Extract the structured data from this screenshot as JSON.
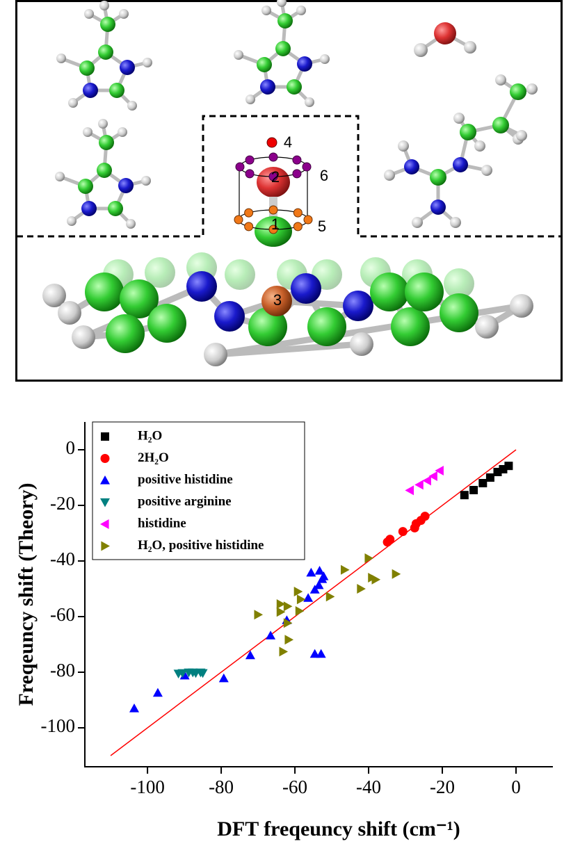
{
  "diagram": {
    "labels": [
      "1",
      "2",
      "3",
      "4",
      "5",
      "6"
    ]
  },
  "chart_data": {
    "type": "scatter",
    "x_label": "DFT freqeuncy shift (cm⁻¹)",
    "y_label": "Freqeuncy shift (Theory)",
    "xlim": [
      -117,
      10
    ],
    "ylim": [
      -114,
      10
    ],
    "xticks": [
      -100,
      -80,
      -60,
      -40,
      -20,
      0
    ],
    "yticks": [
      0,
      -20,
      -40,
      -60,
      -80,
      -100
    ],
    "legend": "upper left",
    "fit_line": {
      "x": [
        -110,
        0
      ],
      "y": [
        -110,
        0
      ],
      "color": "#ff0000"
    },
    "series": [
      {
        "name": "H₂O",
        "color": "#000000",
        "marker": "square",
        "x": [
          -14,
          -11.5,
          -9,
          -7,
          -5,
          -3.5,
          -2
        ],
        "values": [
          -16.3,
          -14.5,
          -12,
          -10,
          -8,
          -7,
          -5.8
        ]
      },
      {
        "name": "2H₂O",
        "color": "#ff0000",
        "marker": "circle",
        "x": [
          -34.9,
          -34.2,
          -30.7,
          -27.5,
          -27.1,
          -25.8,
          -24.7
        ],
        "values": [
          -33.2,
          -32.2,
          -29.4,
          -28.1,
          -26.6,
          -25.4,
          -23.9
        ]
      },
      {
        "name": "positive histidine",
        "color": "#0000ff",
        "marker": "triangle-up",
        "x": [
          -103.6,
          -97.2,
          -89.9,
          -79.3,
          -72.1,
          -66.6,
          -62.2,
          -56.4,
          -55.6,
          -53.3,
          -54.6,
          -53.5,
          -52.6,
          -52.2,
          -54.6,
          -52.9
        ],
        "values": [
          -93,
          -87.4,
          -81.2,
          -82.2,
          -73.9,
          -66.8,
          -61.3,
          -53.3,
          -44.2,
          -43.5,
          -50.3,
          -48.7,
          -46.5,
          -45.5,
          -73.4,
          -73.4
        ]
      },
      {
        "name": "positive arginine",
        "color": "#008080",
        "marker": "triangle-down",
        "x": [
          -91.6,
          -90.5,
          -88.8,
          -87.7,
          -86.9,
          -85.6,
          -85
        ],
        "values": [
          -80.5,
          -80.3,
          -80.1,
          -80.1,
          -80.3,
          -80.1,
          -80.3
        ]
      },
      {
        "name": "histidine",
        "color": "#ff00ff",
        "marker": "triangle-left",
        "x": [
          -28.8,
          -26.2,
          -24.1,
          -22.4,
          -20.7
        ],
        "values": [
          -14.6,
          -12.6,
          -11.1,
          -9.5,
          -7.5
        ]
      },
      {
        "name": "H₂O, positive histidine",
        "color": "#808000",
        "marker": "triangle-right",
        "x": [
          -70,
          -63.9,
          -62,
          -63.9,
          -58.8,
          -58.4,
          -59.2,
          -62,
          -61.7,
          -63.2,
          -50.5,
          -46.5,
          -42.1,
          -39.1,
          -38.1,
          -40,
          -32.6
        ],
        "values": [
          -59.3,
          -55.5,
          -56.3,
          -58.3,
          -58,
          -53.8,
          -51,
          -62.3,
          -68.3,
          -72.6,
          -52.8,
          -43.2,
          -50,
          -46,
          -46.7,
          -39,
          -44.7
        ]
      }
    ]
  }
}
